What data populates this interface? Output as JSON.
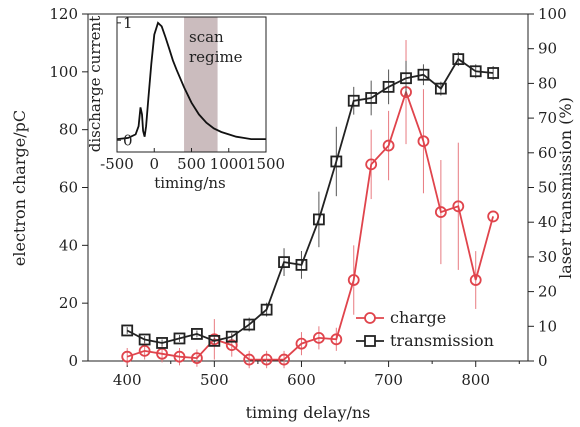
{
  "chart_data": [
    {
      "type": "line",
      "title": "",
      "xlabel": "timing delay/ns",
      "ylabel": "electron charge/pC",
      "y2label": "laser transmission (%)",
      "xlim": [
        355,
        860
      ],
      "ylim": [
        0,
        120
      ],
      "y2lim": [
        0,
        100
      ],
      "xticks": [
        400,
        500,
        600,
        700,
        800
      ],
      "yticks": [
        0,
        20,
        40,
        60,
        80,
        100,
        120
      ],
      "y2ticks": [
        0,
        10,
        20,
        30,
        40,
        50,
        60,
        70,
        80,
        90,
        100
      ],
      "grid": false,
      "legend_position": "bottom-right",
      "series": [
        {
          "name": "charge",
          "axis": "left",
          "color": "#e0444c",
          "marker": "circle",
          "points": [
            {
              "x": 400,
              "y": 1.5,
              "err": 3
            },
            {
              "x": 420,
              "y": 3.5,
              "err": 3
            },
            {
              "x": 440,
              "y": 2.5,
              "err": 3
            },
            {
              "x": 460,
              "y": 1.5,
              "err": 3
            },
            {
              "x": 480,
              "y": 1.0,
              "err": 3
            },
            {
              "x": 500,
              "y": 7.5,
              "err": 7
            },
            {
              "x": 520,
              "y": 5.5,
              "err": 4
            },
            {
              "x": 540,
              "y": 0.5,
              "err": 3
            },
            {
              "x": 560,
              "y": 0.5,
              "err": 3
            },
            {
              "x": 580,
              "y": 0.5,
              "err": 3
            },
            {
              "x": 600,
              "y": 6.0,
              "err": 4
            },
            {
              "x": 620,
              "y": 8.0,
              "err": 4
            },
            {
              "x": 640,
              "y": 7.5,
              "err": 4
            },
            {
              "x": 660,
              "y": 28.0,
              "err": 12
            },
            {
              "x": 680,
              "y": 68.0,
              "err": 12
            },
            {
              "x": 700,
              "y": 74.5,
              "err": 12
            },
            {
              "x": 720,
              "y": 93.0,
              "err": 18
            },
            {
              "x": 740,
              "y": 76.0,
              "err": 18
            },
            {
              "x": 760,
              "y": 51.5,
              "err": 18
            },
            {
              "x": 780,
              "y": 53.5,
              "err": 22
            },
            {
              "x": 800,
              "y": 28.0,
              "err": 10
            },
            {
              "x": 820,
              "y": 50.0,
              "err": 0
            }
          ]
        },
        {
          "name": "transmission",
          "axis": "right",
          "color": "#222222",
          "marker": "square",
          "points": [
            {
              "x": 400,
              "y": 8.8,
              "err": 1
            },
            {
              "x": 420,
              "y": 6.2,
              "err": 1
            },
            {
              "x": 440,
              "y": 5.2,
              "err": 1
            },
            {
              "x": 460,
              "y": 6.5,
              "err": 1
            },
            {
              "x": 480,
              "y": 7.8,
              "err": 1
            },
            {
              "x": 500,
              "y": 5.8,
              "err": 1
            },
            {
              "x": 520,
              "y": 7.0,
              "err": 1
            },
            {
              "x": 540,
              "y": 10.5,
              "err": 2
            },
            {
              "x": 560,
              "y": 14.8,
              "err": 2
            },
            {
              "x": 580,
              "y": 28.5,
              "err": 4
            },
            {
              "x": 600,
              "y": 27.7,
              "err": 4
            },
            {
              "x": 620,
              "y": 40.8,
              "err": 8
            },
            {
              "x": 640,
              "y": 57.5,
              "err": 10
            },
            {
              "x": 660,
              "y": 75.0,
              "err": 4
            },
            {
              "x": 680,
              "y": 75.8,
              "err": 5
            },
            {
              "x": 700,
              "y": 79.0,
              "err": 5
            },
            {
              "x": 720,
              "y": 81.5,
              "err": 5
            },
            {
              "x": 740,
              "y": 82.5,
              "err": 3
            },
            {
              "x": 760,
              "y": 78.5,
              "err": 2
            },
            {
              "x": 780,
              "y": 87.0,
              "err": 2
            },
            {
              "x": 800,
              "y": 83.5,
              "err": 2
            },
            {
              "x": 820,
              "y": 83.0,
              "err": 2
            }
          ]
        }
      ]
    },
    {
      "type": "area",
      "title": "",
      "xlabel": "timing/ns",
      "ylabel": "discharge current",
      "xlim": [
        -500,
        1500
      ],
      "ylim": [
        -0.1,
        1.05
      ],
      "xticks": [
        -500,
        0,
        500,
        1000,
        1500
      ],
      "yticks": [
        0,
        1
      ],
      "annotation": {
        "text_lines": [
          "scan",
          "regime"
        ],
        "x_range": [
          400,
          850
        ],
        "color": "#cbbcbe"
      },
      "series": [
        {
          "name": "",
          "color": "#111111",
          "x": [
            -500,
            -350,
            -250,
            -210,
            -185,
            -165,
            -150,
            -130,
            -110,
            -80,
            -40,
            0,
            50,
            100,
            150,
            200,
            250,
            300,
            400,
            500,
            600,
            700,
            800,
            900,
            1000,
            1100,
            1200,
            1300,
            1500
          ],
          "y": [
            0.01,
            0.02,
            0.05,
            0.12,
            0.28,
            0.22,
            0.08,
            0.03,
            0.12,
            0.35,
            0.65,
            0.9,
            1.0,
            0.97,
            0.88,
            0.78,
            0.68,
            0.6,
            0.45,
            0.32,
            0.22,
            0.15,
            0.1,
            0.07,
            0.05,
            0.03,
            0.02,
            0.01,
            0.01
          ]
        }
      ]
    }
  ]
}
